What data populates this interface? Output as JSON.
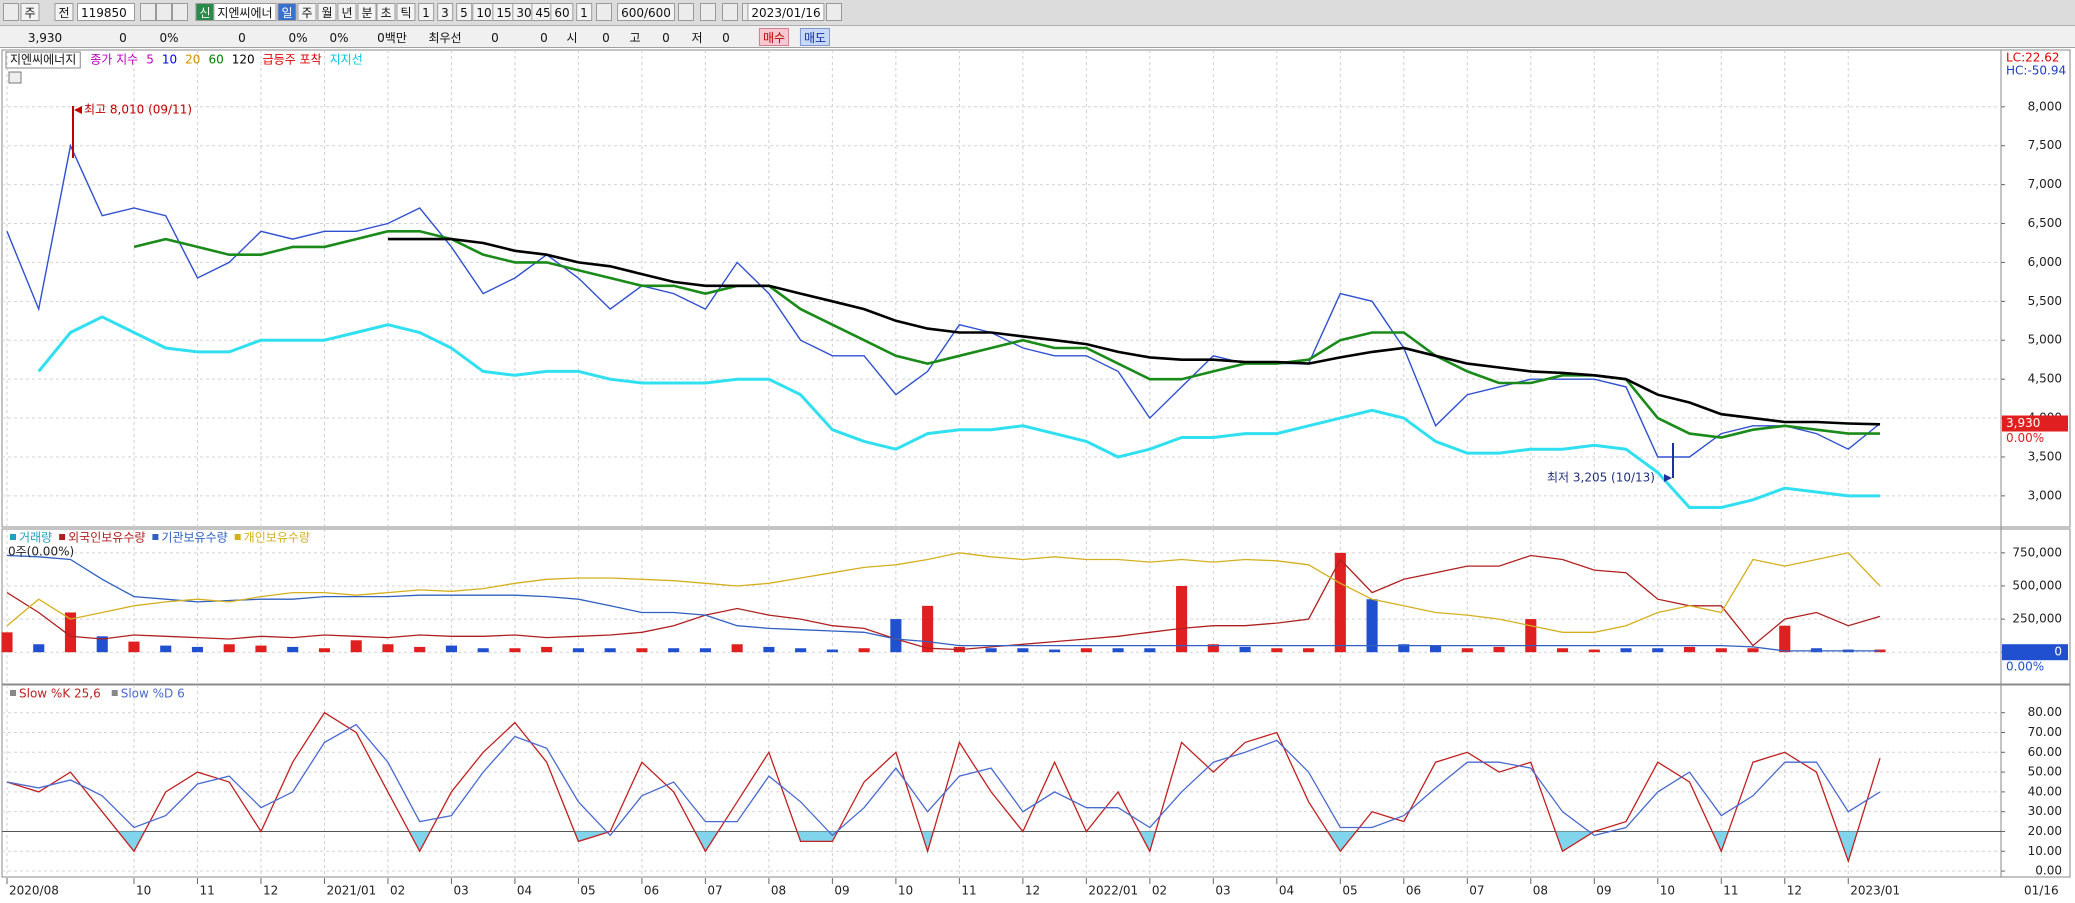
{
  "toolbar": {
    "row1": [
      "주",
      "전",
      "119850",
      "신",
      "지엔씨에너",
      "일",
      "주",
      "월",
      "년",
      "분",
      "초",
      "틱",
      "1",
      "3",
      "5",
      "10",
      "15",
      "30",
      "45",
      "60",
      "1",
      "600/600",
      "2023/01/16"
    ],
    "row2": [
      "3,930",
      "0",
      "0%",
      "0",
      "0%",
      "0%",
      "0백만",
      "최우선",
      "0",
      "0",
      "시",
      "0",
      "고",
      "0",
      "저",
      "0",
      "매수",
      "매도"
    ]
  },
  "chart_data": [
    {
      "type": "line",
      "title": "지엔씨에너지",
      "legend": [
        {
          "text": "종가 지수",
          "color": "#c000c0"
        },
        {
          "text": "5",
          "color": "#c000c0"
        },
        {
          "text": "10",
          "color": "#0000ff"
        },
        {
          "text": "20",
          "color": "#d09000"
        },
        {
          "text": "60",
          "color": "#008000"
        },
        {
          "text": "120",
          "color": "#000000"
        },
        {
          "text": "급등주 포착",
          "color": "#e00000"
        },
        {
          "text": "지지선",
          "color": "#00c8dc"
        }
      ],
      "corner_labels": [
        {
          "text": "LC:22.62",
          "color": "#e00000"
        },
        {
          "text": "HC:-50.94",
          "color": "#2040c0"
        }
      ],
      "annotations": [
        {
          "text": "최고 8,010 (09/11)",
          "color": "#c00000"
        },
        {
          "text": "최저 3,205 (10/13)",
          "color": "#203080"
        }
      ],
      "last_price_label": "3,930",
      "last_change_label": "0.00%",
      "series": [
        {
          "color": "#3050d0",
          "values": [
            6400,
            5400,
            7500,
            6600,
            6700,
            6600,
            5800,
            6000,
            6400,
            6300,
            6400,
            6400,
            6500,
            6700,
            6200,
            5600,
            5800,
            6100,
            5800,
            5400,
            5700,
            5600,
            5400,
            6000,
            5600,
            5000,
            4800,
            4800,
            4300,
            4600,
            5200,
            5100,
            4900,
            4800,
            4800,
            4600,
            4000,
            4400,
            4800,
            4700,
            4700,
            4700,
            5600,
            5500,
            4900,
            3900,
            4300,
            4400,
            4500,
            4500,
            4500,
            4400,
            3500,
            3500,
            3800,
            3900,
            3900,
            3800,
            3600,
            3930
          ]
        },
        {
          "color": "#1a8a1a",
          "values": [
            null,
            null,
            null,
            null,
            6200,
            6300,
            6200,
            6100,
            6100,
            6200,
            6200,
            6300,
            6400,
            6400,
            6300,
            6100,
            6000,
            6000,
            5900,
            5800,
            5700,
            5700,
            5600,
            5700,
            5700,
            5400,
            5200,
            5000,
            4800,
            4700,
            4800,
            4900,
            5000,
            4900,
            4900,
            4700,
            4500,
            4500,
            4600,
            4700,
            4700,
            4750,
            5000,
            5100,
            5100,
            4800,
            4600,
            4450,
            4450,
            4550,
            4550,
            4500,
            4000,
            3800,
            3750,
            3850,
            3900,
            3850,
            3800,
            3800
          ]
        },
        {
          "color": "#000000",
          "values": [
            null,
            null,
            null,
            null,
            null,
            null,
            null,
            null,
            null,
            null,
            null,
            null,
            6300,
            6300,
            6300,
            6250,
            6150,
            6100,
            6000,
            5950,
            5850,
            5750,
            5700,
            5700,
            5700,
            5600,
            5500,
            5400,
            5250,
            5150,
            5100,
            5100,
            5050,
            5000,
            4950,
            4850,
            4780,
            4750,
            4750,
            4720,
            4720,
            4700,
            4780,
            4850,
            4900,
            4800,
            4700,
            4650,
            4600,
            4580,
            4550,
            4500,
            4300,
            4200,
            4050,
            4000,
            3950,
            3950,
            3930,
            3920
          ]
        },
        {
          "color": "#30e0f0",
          "values": [
            null,
            4600,
            5100,
            5300,
            5100,
            4900,
            4850,
            4850,
            5000,
            5000,
            5000,
            5100,
            5200,
            5100,
            4900,
            4600,
            4550,
            4600,
            4600,
            4500,
            4450,
            4450,
            4450,
            4500,
            4500,
            4300,
            3850,
            3700,
            3600,
            3800,
            3850,
            3850,
            3900,
            3800,
            3700,
            3500,
            3600,
            3750,
            3750,
            3800,
            3800,
            3900,
            4000,
            4100,
            4000,
            3700,
            3550,
            3550,
            3600,
            3600,
            3650,
            3600,
            3300,
            2850,
            2850,
            2950,
            3100,
            3050,
            3000,
            3000
          ]
        }
      ],
      "ylim": [
        2600,
        8730
      ],
      "yticks": [
        {
          "value": 3000,
          "label": "3,000"
        },
        {
          "value": 3500,
          "label": "3,500"
        },
        {
          "value": 4000,
          "label": "4,000"
        },
        {
          "value": 4500,
          "label": "4,500"
        },
        {
          "value": 5000,
          "label": "5,000"
        },
        {
          "value": 5500,
          "label": "5,500"
        },
        {
          "value": 6000,
          "label": "6,000"
        },
        {
          "value": 6500,
          "label": "6,500"
        },
        {
          "value": 7000,
          "label": "7,000"
        },
        {
          "value": 7500,
          "label": "7,500"
        },
        {
          "value": 8000,
          "label": "8,000"
        }
      ],
      "grid": true
    },
    {
      "type": "bar",
      "subtitle": "0주(0.00%)",
      "pct_label": "0.00%",
      "up_color": "#e02020",
      "down_color": "#2050d0",
      "series": [
        {
          "name": "거래량",
          "type": "bar",
          "color": "#20a0c0",
          "values": [
            150000,
            60000,
            300000,
            120000,
            80000,
            50000,
            40000,
            60000,
            50000,
            40000,
            30000,
            90000,
            60000,
            40000,
            50000,
            30000,
            30000,
            40000,
            30000,
            30000,
            30000,
            30000,
            30000,
            60000,
            40000,
            30000,
            20000,
            30000,
            250000,
            350000,
            40000,
            30000,
            30000,
            20000,
            30000,
            30000,
            30000,
            500000,
            60000,
            40000,
            30000,
            30000,
            750000,
            400000,
            60000,
            50000,
            30000,
            40000,
            250000,
            30000,
            20000,
            30000,
            30000,
            40000,
            30000,
            30000,
            200000,
            30000,
            20000,
            20000
          ]
        },
        {
          "name": "외국인보유수량",
          "color": "#b02020",
          "values": [
            450000,
            300000,
            120000,
            100000,
            130000,
            120000,
            110000,
            100000,
            120000,
            110000,
            130000,
            120000,
            110000,
            130000,
            120000,
            120000,
            130000,
            110000,
            120000,
            130000,
            150000,
            200000,
            280000,
            330000,
            280000,
            250000,
            200000,
            180000,
            100000,
            30000,
            20000,
            40000,
            60000,
            80000,
            100000,
            120000,
            150000,
            180000,
            200000,
            200000,
            220000,
            250000,
            700000,
            450000,
            550000,
            600000,
            650000,
            650000,
            730000,
            700000,
            620000,
            600000,
            400000,
            350000,
            350000,
            50000,
            250000,
            300000,
            200000,
            270000
          ]
        },
        {
          "name": "기관보유수량",
          "color": "#3060c0",
          "values": [
            730000,
            720000,
            700000,
            550000,
            420000,
            400000,
            380000,
            390000,
            400000,
            400000,
            420000,
            420000,
            420000,
            430000,
            430000,
            430000,
            430000,
            420000,
            400000,
            350000,
            300000,
            300000,
            280000,
            200000,
            180000,
            170000,
            160000,
            150000,
            100000,
            80000,
            50000,
            50000,
            50000,
            50000,
            50000,
            50000,
            50000,
            50000,
            50000,
            50000,
            50000,
            50000,
            50000,
            50000,
            50000,
            50000,
            50000,
            50000,
            50000,
            50000,
            50000,
            50000,
            50000,
            50000,
            50000,
            40000,
            10000,
            10000,
            10000,
            10000
          ]
        },
        {
          "name": "개인보유수량",
          "color": "#d4b020",
          "values": [
            200000,
            400000,
            250000,
            300000,
            350000,
            380000,
            400000,
            380000,
            420000,
            450000,
            450000,
            430000,
            450000,
            470000,
            460000,
            480000,
            520000,
            550000,
            560000,
            560000,
            550000,
            540000,
            520000,
            500000,
            520000,
            560000,
            600000,
            640000,
            660000,
            700000,
            750000,
            720000,
            700000,
            720000,
            700000,
            700000,
            680000,
            700000,
            680000,
            700000,
            690000,
            660000,
            520000,
            400000,
            350000,
            300000,
            280000,
            250000,
            200000,
            150000,
            150000,
            200000,
            300000,
            350000,
            300000,
            700000,
            650000,
            700000,
            750000,
            500000
          ]
        }
      ],
      "ylim": [
        -240000,
        930000
      ],
      "yticks": [
        0,
        {
          "value": 250000,
          "label": "250,000"
        },
        {
          "value": 500000,
          "label": "500,000"
        },
        {
          "value": 750000,
          "label": "750,000"
        }
      ],
      "grid": true
    },
    {
      "type": "line",
      "oversold": 20,
      "fill_color": "#80d4ec",
      "series": [
        {
          "name": "Slow %K 25,6",
          "color": "#c02020",
          "values": [
            45,
            40,
            50,
            30,
            10,
            40,
            50,
            45,
            20,
            55,
            80,
            70,
            40,
            10,
            40,
            60,
            75,
            55,
            15,
            20,
            55,
            40,
            10,
            35,
            60,
            15,
            15,
            45,
            60,
            10,
            65,
            40,
            20,
            55,
            20,
            40,
            10,
            65,
            50,
            65,
            70,
            35,
            10,
            30,
            25,
            55,
            60,
            50,
            55,
            10,
            20,
            25,
            55,
            45,
            10,
            55,
            60,
            50,
            5,
            57
          ]
        },
        {
          "name": "Slow %D 6",
          "color": "#4a6ad0",
          "values": [
            45,
            42,
            46,
            38,
            22,
            28,
            44,
            48,
            32,
            40,
            65,
            74,
            55,
            25,
            28,
            50,
            68,
            62,
            35,
            18,
            38,
            45,
            25,
            25,
            48,
            35,
            18,
            32,
            52,
            30,
            48,
            52,
            30,
            40,
            32,
            32,
            22,
            40,
            55,
            60,
            66,
            50,
            22,
            22,
            28,
            42,
            55,
            55,
            52,
            30,
            18,
            22,
            40,
            50,
            28,
            38,
            55,
            55,
            30,
            40
          ]
        }
      ],
      "ylim": [
        -3,
        94
      ],
      "yticks": [
        {
          "value": 0,
          "label": "0.00"
        },
        {
          "value": 10,
          "label": "10.00"
        },
        {
          "value": 20,
          "label": "20.00"
        },
        {
          "value": 30,
          "label": "30.00"
        },
        {
          "value": 40,
          "label": "40.00"
        },
        {
          "value": 50,
          "label": "50.00"
        },
        {
          "value": 60,
          "label": "60.00"
        },
        {
          "value": 70,
          "label": "70.00"
        },
        {
          "value": 80,
          "label": "80.00"
        }
      ],
      "grid": true,
      "categories": [
        "2020/08",
        null,
        null,
        null,
        "10",
        null,
        "11",
        null,
        "12",
        null,
        "2021/01",
        null,
        "02",
        null,
        "03",
        null,
        "04",
        null,
        "05",
        null,
        "06",
        null,
        "07",
        null,
        "08",
        null,
        "09",
        null,
        "10",
        null,
        "11",
        null,
        "12",
        null,
        "2022/01",
        null,
        "02",
        null,
        "03",
        null,
        "04",
        null,
        "05",
        null,
        "06",
        null,
        "07",
        null,
        "08",
        null,
        "09",
        null,
        "10",
        null,
        "11",
        null,
        "12",
        null,
        "2023/01",
        null
      ],
      "x_end_label": "01/16"
    }
  ]
}
